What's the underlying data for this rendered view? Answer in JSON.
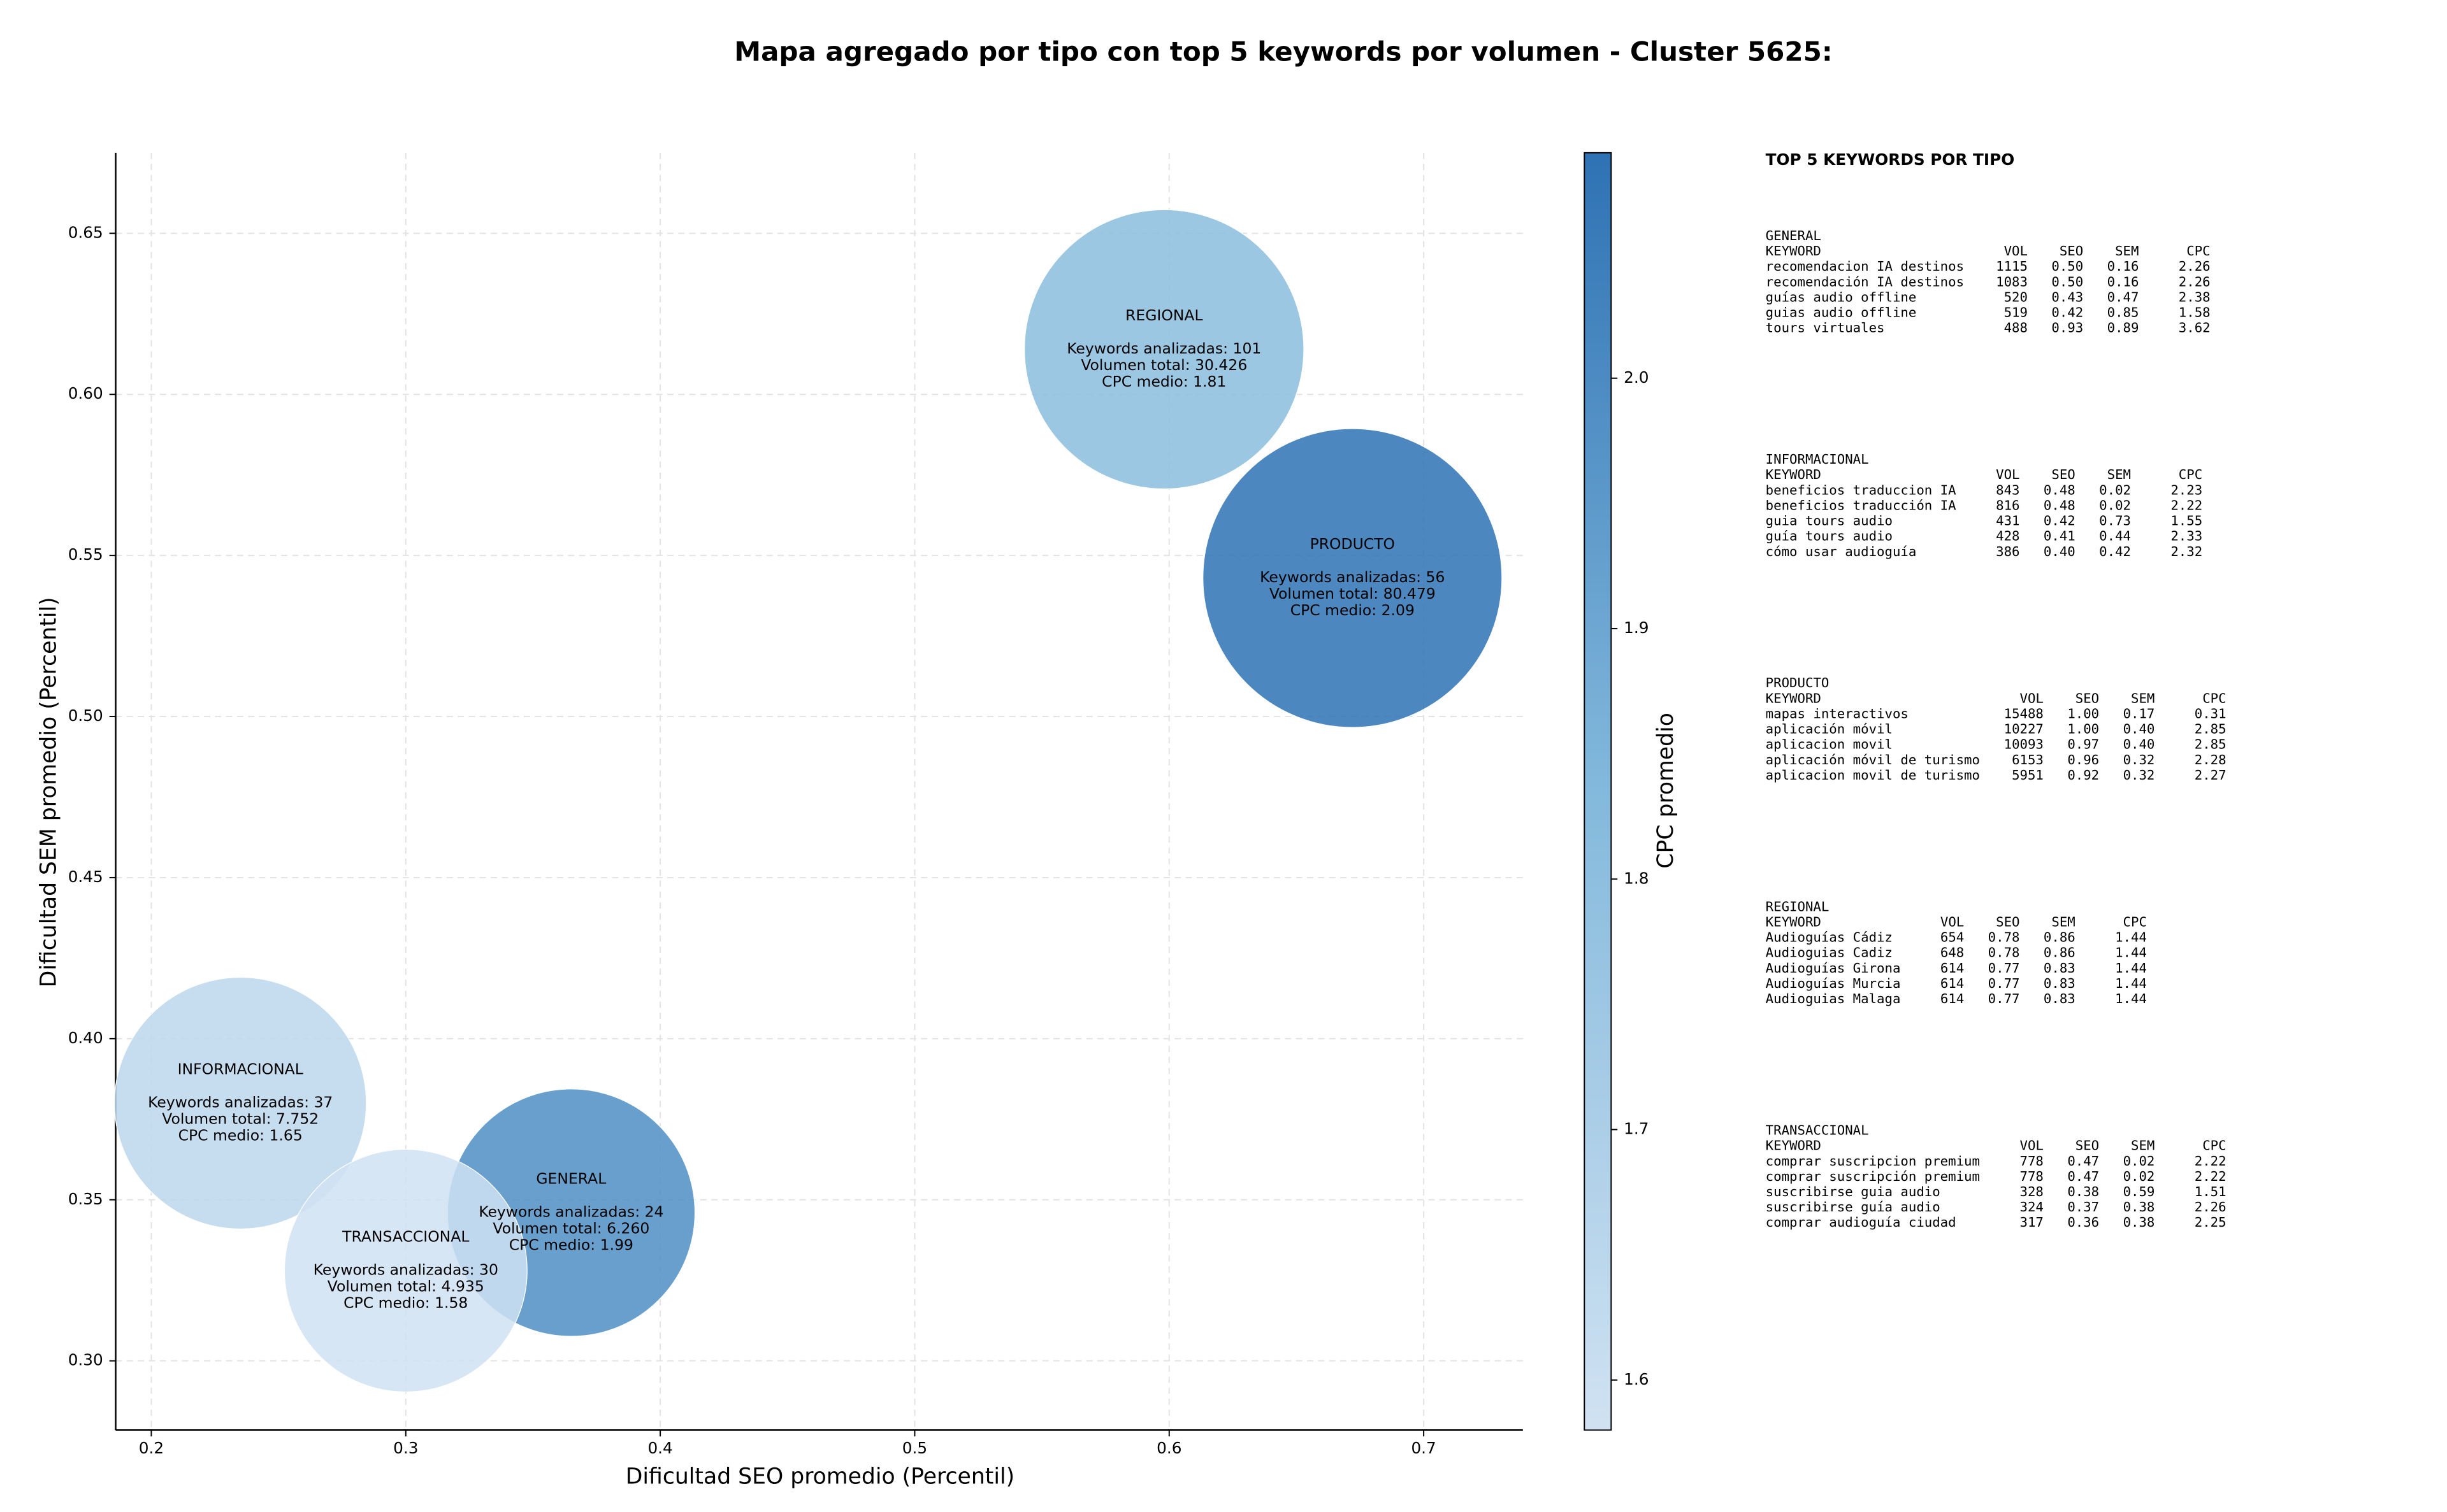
{
  "chart_data": {
    "type": "bubble",
    "title": "Mapa agregado por tipo con top 5 keywords por volumen - Cluster 5625:",
    "x_label": "Dificultad SEO promedio (Percentil)",
    "y_label": "Dificultad SEM promedio (Percentil)",
    "xlim": [
      0.186,
      0.739
    ],
    "ylim": [
      0.2785,
      0.675
    ],
    "xticks": [
      0.2,
      0.3,
      0.4,
      0.5,
      0.6,
      0.7
    ],
    "yticks": [
      {
        "value": 0.3,
        "label": "0.30"
      },
      0.35,
      {
        "value": 0.4,
        "label": "0.40"
      },
      0.45,
      {
        "value": 0.5,
        "label": "0.50"
      },
      0.55,
      {
        "value": 0.6,
        "label": "0.60"
      },
      0.65
    ],
    "grid": true,
    "colorbar": {
      "label": "CPC promedio",
      "clim": [
        1.58,
        2.09
      ],
      "ticks": [
        1.6,
        1.7,
        1.8,
        1.9,
        {
          "value": 2,
          "label": "2.0"
        }
      ],
      "colors": [
        "#d0e2f2",
        "#83b9dc",
        "#2e72b4"
      ]
    },
    "points": [
      {
        "name": "GENERAL",
        "x": 0.365,
        "y": 0.346,
        "keywords": 24,
        "volume": 6260,
        "cpc": 1.99,
        "value_labels": {
          "keywords": "Keywords analizadas: 24",
          "volume": "Volumen total: 6.260",
          "cpc": "CPC medio: 1.99"
        }
      },
      {
        "name": "INFORMACIONAL",
        "x": 0.235,
        "y": 0.38,
        "keywords": 37,
        "volume": 7752,
        "cpc": 1.65,
        "value_labels": {
          "keywords": "Keywords analizadas: 37",
          "volume": "Volumen total: 7.752",
          "cpc": "CPC medio: 1.65"
        }
      },
      {
        "name": "PRODUCTO",
        "x": 0.672,
        "y": 0.543,
        "keywords": 56,
        "volume": 80479,
        "cpc": 2.09,
        "value_labels": {
          "keywords": "Keywords analizadas: 56",
          "volume": "Volumen total: 80.479",
          "cpc": "CPC medio: 2.09"
        }
      },
      {
        "name": "REGIONAL",
        "x": 0.598,
        "y": 0.614,
        "keywords": 101,
        "volume": 30426,
        "cpc": 1.81,
        "value_labels": {
          "keywords": "Keywords analizadas: 101",
          "volume": "Volumen total: 30.426",
          "cpc": "CPC medio: 1.81"
        }
      },
      {
        "name": "TRANSACCIONAL",
        "x": 0.3,
        "y": 0.328,
        "keywords": 30,
        "volume": 4935,
        "cpc": 1.58,
        "value_labels": {
          "keywords": "Keywords analizadas: 30",
          "volume": "Volumen total: 4.935",
          "cpc": "CPC medio: 1.58"
        }
      }
    ]
  },
  "keyword_panel": {
    "title": "TOP 5 KEYWORDS POR TIPO",
    "columns": [
      "KEYWORD",
      "VOL",
      "SEO",
      "SEM",
      "CPC"
    ],
    "groups": [
      {
        "name": "GENERAL",
        "rows": [
          [
            "recomendacion IA destinos",
            "1115",
            "0.50",
            "0.16",
            "2.26"
          ],
          [
            "recomendación IA destinos",
            "1083",
            "0.50",
            "0.16",
            "2.26"
          ],
          [
            "guías audio offline",
            "520",
            "0.43",
            "0.47",
            "2.38"
          ],
          [
            "guias audio offline",
            "519",
            "0.42",
            "0.85",
            "1.58"
          ],
          [
            "tours virtuales",
            "488",
            "0.93",
            "0.89",
            "3.62"
          ]
        ]
      },
      {
        "name": "INFORMACIONAL",
        "rows": [
          [
            "beneficios traduccion IA",
            "843",
            "0.48",
            "0.02",
            "2.23"
          ],
          [
            "beneficios traducción IA",
            "816",
            "0.48",
            "0.02",
            "2.22"
          ],
          [
            "guia tours audio",
            "431",
            "0.42",
            "0.73",
            "1.55"
          ],
          [
            "guía tours audio",
            "428",
            "0.41",
            "0.44",
            "2.33"
          ],
          [
            "cómo usar audioguía",
            "386",
            "0.40",
            "0.42",
            "2.32"
          ]
        ]
      },
      {
        "name": "PRODUCTO",
        "rows": [
          [
            "mapas interactivos",
            "15488",
            "1.00",
            "0.17",
            "0.31"
          ],
          [
            "aplicación móvil",
            "10227",
            "1.00",
            "0.40",
            "2.85"
          ],
          [
            "aplicacion movil",
            "10093",
            "0.97",
            "0.40",
            "2.85"
          ],
          [
            "aplicación móvil de turismo",
            "6153",
            "0.96",
            "0.32",
            "2.28"
          ],
          [
            "aplicacion movil de turismo",
            "5951",
            "0.92",
            "0.32",
            "2.27"
          ]
        ]
      },
      {
        "name": "REGIONAL",
        "rows": [
          [
            "Audioguías Cádiz",
            "654",
            "0.78",
            "0.86",
            "1.44"
          ],
          [
            "Audioguias Cadiz",
            "648",
            "0.78",
            "0.86",
            "1.44"
          ],
          [
            "Audioguías Girona",
            "614",
            "0.77",
            "0.83",
            "1.44"
          ],
          [
            "Audioguías Murcia",
            "614",
            "0.77",
            "0.83",
            "1.44"
          ],
          [
            "Audioguias Malaga",
            "614",
            "0.77",
            "0.83",
            "1.44"
          ]
        ]
      },
      {
        "name": "TRANSACCIONAL",
        "rows": [
          [
            "comprar suscripcion premium",
            "778",
            "0.47",
            "0.02",
            "2.22"
          ],
          [
            "comprar suscripción premium",
            "778",
            "0.47",
            "0.02",
            "2.22"
          ],
          [
            "suscribirse guia audio",
            "328",
            "0.38",
            "0.59",
            "1.51"
          ],
          [
            "suscribirse guía audio",
            "324",
            "0.37",
            "0.38",
            "2.26"
          ],
          [
            "comprar audioguía ciudad",
            "317",
            "0.36",
            "0.38",
            "2.25"
          ]
        ]
      }
    ]
  }
}
